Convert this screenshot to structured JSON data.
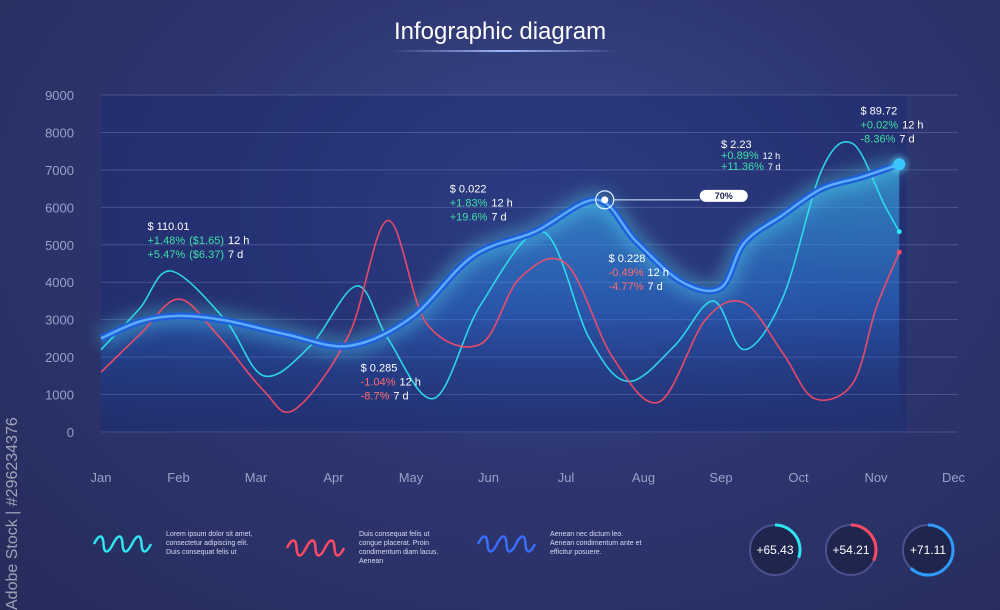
{
  "title": "Infographic diagram",
  "watermark": "Adobe Stock | #296234376",
  "chart_data": {
    "type": "line",
    "categories": [
      "Jan",
      "Feb",
      "Mar",
      "Apr",
      "May",
      "Jun",
      "Jul",
      "Aug",
      "Sep",
      "Oct",
      "Nov",
      "Dec"
    ],
    "ylim": [
      0,
      9000
    ],
    "yticks": [
      0,
      1000,
      2000,
      3000,
      4000,
      5000,
      6000,
      7000,
      8000,
      9000
    ],
    "grid": true,
    "series": [
      {
        "color": "#2f9bff",
        "style": "main-area",
        "x": [
          0,
          0.5,
          1.0,
          1.6,
          2.4,
          3.2,
          4.0,
          4.8,
          5.6,
          6.4,
          6.9,
          7.5,
          8.0,
          8.3,
          8.8,
          9.3,
          9.8,
          10.3
        ],
        "y": [
          2500,
          2950,
          3100,
          2980,
          2600,
          2300,
          3050,
          4700,
          5350,
          6200,
          5100,
          4000,
          3850,
          5050,
          5800,
          6500,
          6800,
          7150
        ]
      },
      {
        "color": "#2ee6f0",
        "style": "thin",
        "x": [
          0,
          0.5,
          0.9,
          1.6,
          2.1,
          2.7,
          3.3,
          3.7,
          4.3,
          4.9,
          5.7,
          6.3,
          6.8,
          7.4,
          7.9,
          8.3,
          8.8,
          9.3,
          9.7,
          10.1,
          10.3
        ],
        "y": [
          2200,
          3300,
          4300,
          3000,
          1500,
          2300,
          3900,
          2500,
          900,
          3400,
          5350,
          2500,
          1350,
          2300,
          3500,
          2200,
          3600,
          7000,
          7700,
          6100,
          5350
        ]
      },
      {
        "color": "#ff4a66",
        "style": "thin",
        "x": [
          0,
          0.5,
          1.0,
          1.5,
          2.1,
          2.5,
          3.2,
          3.7,
          4.2,
          4.9,
          5.4,
          6.0,
          6.6,
          7.2,
          7.8,
          8.3,
          8.8,
          9.2,
          9.7,
          10.0,
          10.3
        ],
        "y": [
          1600,
          2600,
          3550,
          2600,
          1100,
          600,
          2600,
          5650,
          2900,
          2350,
          4100,
          4500,
          2000,
          800,
          3000,
          3450,
          2100,
          900,
          1300,
          3300,
          4800
        ]
      }
    ],
    "annotations": [
      {
        "x": 0.6,
        "y_label": 5400,
        "price": "$ 110.01",
        "l1": "+1.48%",
        "l1b": "($1.65)",
        "l1c": "12 h",
        "l2": "+5.47%",
        "l2b": "($6.37)",
        "l2c": "7 d",
        "tone": "pos"
      },
      {
        "x": 3.35,
        "y_label": 1620,
        "price": "$ 0.285",
        "l1": "-1.04%",
        "l1c": "12 h",
        "l2": "-8.7%",
        "l2c": "7 d",
        "tone": "neg"
      },
      {
        "x": 4.5,
        "y_label": 6400,
        "price": "$ 0.022",
        "l1": "+1.83%",
        "l1c": "12 h",
        "l2": "+19.6%",
        "l2c": "7 d",
        "tone": "pos"
      },
      {
        "x": 6.55,
        "y_label": 4540,
        "price": "$ 0.228",
        "l1": "-0.49%",
        "l1c": "12 h",
        "l2": "-4.77%",
        "l2c": "7 d",
        "tone": "neg"
      },
      {
        "x": 8.0,
        "y_label": 7590,
        "price": "$ 2.23",
        "l1": "+0.89%",
        "l1c": "12 h",
        "l2": "+11.36%",
        "l2c": "7 d",
        "tone": "pos",
        "small": true
      },
      {
        "x": 9.8,
        "y_label": 8480,
        "price": "$ 89.72",
        "l1": "+0.02%",
        "l1c": "12 h",
        "l2": "-8.36%",
        "l2c": "7 d",
        "tone": "mixed"
      }
    ],
    "marker": {
      "x": 6.5,
      "y": 6200,
      "badge": "70%"
    }
  },
  "legend": [
    {
      "color": "#2ee6f0",
      "text": "Lorem ipsum dolor sit amet, consectetur adipiscing elit. Duis consequat felis ut"
    },
    {
      "color": "#ff4a66",
      "text": "Duis consequat felis ut congue placerat. Proin condimentum diam lacus. Aenean"
    },
    {
      "color": "#3a6dff",
      "text": "Aenean nec dictum leo. Aenean condimentum ante et efficitur posuere."
    }
  ],
  "stats": [
    {
      "value": "+65.43",
      "color": "#2ee6f0",
      "fraction": 0.3
    },
    {
      "value": "+54.21",
      "color": "#ff4a66",
      "fraction": 0.32
    },
    {
      "value": "+71.11",
      "color": "#2f9bff",
      "fraction": 0.62
    }
  ]
}
